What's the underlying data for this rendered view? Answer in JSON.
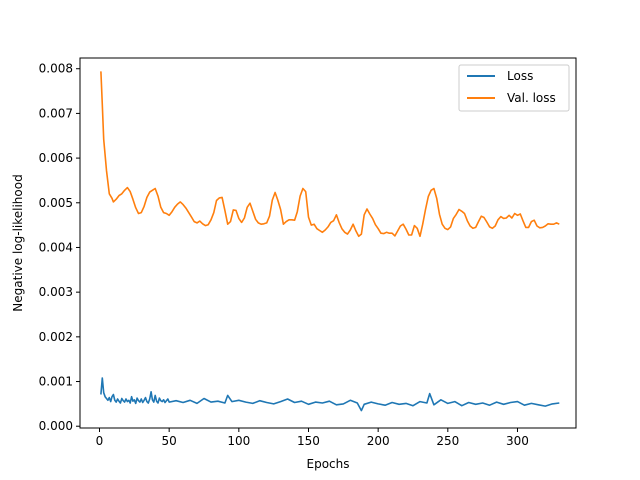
{
  "chart_data": {
    "type": "line",
    "xlabel": "Epochs",
    "ylabel": "Negative log-likelihood",
    "xlim": [
      -14,
      342
    ],
    "ylim": [
      -4e-05,
      0.00824
    ],
    "xticks": [
      0,
      50,
      100,
      150,
      200,
      250,
      300
    ],
    "yticks": [
      0.0,
      0.001,
      0.002,
      0.003,
      0.004,
      0.005,
      0.006,
      0.007,
      0.008
    ],
    "ytick_labels": [
      "0.000",
      "0.001",
      "0.002",
      "0.003",
      "0.004",
      "0.005",
      "0.006",
      "0.007",
      "0.008"
    ],
    "legend": {
      "placement": "top-right"
    },
    "grid": false,
    "series": [
      {
        "name": "Loss",
        "color": "#1f77b4",
        "x": [
          1,
          2,
          3,
          4,
          5,
          6,
          7,
          8,
          9,
          10,
          11,
          12,
          13,
          14,
          15,
          16,
          17,
          18,
          19,
          20,
          21,
          22,
          23,
          24,
          25,
          26,
          27,
          28,
          29,
          30,
          31,
          32,
          33,
          34,
          35,
          36,
          37,
          38,
          39,
          40,
          41,
          42,
          43,
          44,
          45,
          46,
          47,
          48,
          49,
          50,
          55,
          60,
          65,
          70,
          75,
          80,
          85,
          90,
          92,
          95,
          100,
          105,
          110,
          115,
          120,
          125,
          130,
          135,
          140,
          145,
          150,
          155,
          160,
          165,
          170,
          175,
          180,
          185,
          188,
          190,
          195,
          200,
          205,
          210,
          215,
          220,
          225,
          230,
          235,
          237,
          240,
          245,
          250,
          255,
          260,
          265,
          270,
          275,
          280,
          285,
          290,
          295,
          300,
          305,
          310,
          315,
          320,
          325,
          330
        ],
        "values": [
          0.00071,
          0.00108,
          0.00075,
          0.00066,
          0.00062,
          0.00058,
          0.00064,
          0.00055,
          0.00066,
          0.00071,
          0.00058,
          0.00054,
          0.00061,
          0.00056,
          0.00052,
          0.00062,
          0.00057,
          0.00054,
          0.00061,
          0.00055,
          0.00058,
          0.00052,
          0.00066,
          0.00056,
          0.00059,
          0.00051,
          0.00063,
          0.00057,
          0.00054,
          0.00061,
          0.00053,
          0.00058,
          0.00064,
          0.00055,
          0.00052,
          0.00061,
          0.00077,
          0.00059,
          0.00054,
          0.00069,
          0.00056,
          0.00052,
          0.00063,
          0.00057,
          0.00055,
          0.00059,
          0.00053,
          0.00057,
          0.00061,
          0.00054,
          0.00057,
          0.00053,
          0.00058,
          0.00051,
          0.00062,
          0.00054,
          0.00056,
          0.00052,
          0.00069,
          0.00055,
          0.00058,
          0.00054,
          0.00051,
          0.00057,
          0.00053,
          0.0005,
          0.00055,
          0.00061,
          0.00053,
          0.00056,
          0.00049,
          0.00054,
          0.00052,
          0.00056,
          0.00048,
          0.0005,
          0.00058,
          0.00052,
          0.00035,
          0.00049,
          0.00054,
          0.0005,
          0.00047,
          0.00053,
          0.00049,
          0.00051,
          0.00046,
          0.00055,
          0.00052,
          0.00073,
          0.00048,
          0.00059,
          0.00051,
          0.00055,
          0.00046,
          0.00053,
          0.00049,
          0.00052,
          0.00047,
          0.00054,
          0.00049,
          0.00053,
          0.00055,
          0.00047,
          0.00051,
          0.00048,
          0.00045,
          0.0005,
          0.00052
        ]
      },
      {
        "name": "Val. loss",
        "color": "#ff7f0e",
        "x": [
          1,
          2,
          3,
          5,
          7,
          9,
          10,
          12,
          14,
          16,
          18,
          20,
          22,
          24,
          26,
          28,
          30,
          32,
          34,
          36,
          38,
          40,
          42,
          44,
          46,
          48,
          50,
          52,
          54,
          56,
          58,
          60,
          62,
          64,
          66,
          68,
          70,
          72,
          74,
          76,
          78,
          80,
          82,
          84,
          86,
          88,
          90,
          92,
          94,
          96,
          98,
          100,
          102,
          104,
          106,
          108,
          110,
          112,
          114,
          116,
          118,
          120,
          122,
          124,
          126,
          128,
          130,
          132,
          134,
          136,
          138,
          140,
          142,
          144,
          146,
          148,
          150,
          152,
          154,
          156,
          158,
          160,
          162,
          164,
          166,
          168,
          170,
          172,
          174,
          176,
          178,
          180,
          182,
          184,
          186,
          188,
          190,
          192,
          194,
          196,
          198,
          200,
          202,
          204,
          206,
          208,
          210,
          212,
          214,
          216,
          218,
          220,
          222,
          224,
          226,
          228,
          230,
          232,
          234,
          236,
          238,
          240,
          242,
          244,
          246,
          248,
          250,
          252,
          254,
          256,
          258,
          260,
          262,
          264,
          266,
          268,
          270,
          272,
          274,
          276,
          278,
          280,
          282,
          284,
          286,
          288,
          290,
          292,
          294,
          296,
          298,
          300,
          302,
          304,
          306,
          308,
          310,
          312,
          314,
          316,
          318,
          320,
          322,
          324,
          326,
          328,
          330
        ],
        "values": [
          0.00794,
          0.0072,
          0.00642,
          0.00572,
          0.0052,
          0.0051,
          0.00502,
          0.00508,
          0.00516,
          0.0052,
          0.00528,
          0.00534,
          0.00525,
          0.00508,
          0.00489,
          0.00476,
          0.00478,
          0.00492,
          0.00512,
          0.00524,
          0.00528,
          0.00532,
          0.00515,
          0.0049,
          0.00478,
          0.00476,
          0.00472,
          0.0048,
          0.0049,
          0.00497,
          0.00502,
          0.00496,
          0.00488,
          0.00478,
          0.00468,
          0.00458,
          0.00455,
          0.00459,
          0.00453,
          0.00449,
          0.00451,
          0.00462,
          0.00478,
          0.00505,
          0.00511,
          0.00512,
          0.00483,
          0.00452,
          0.00458,
          0.00484,
          0.00483,
          0.00465,
          0.00456,
          0.00466,
          0.0049,
          0.00499,
          0.00481,
          0.00463,
          0.00455,
          0.00452,
          0.00453,
          0.00455,
          0.0047,
          0.00506,
          0.00523,
          0.00506,
          0.00485,
          0.00452,
          0.00458,
          0.00462,
          0.00462,
          0.00461,
          0.0048,
          0.00515,
          0.00532,
          0.00525,
          0.00468,
          0.0045,
          0.00452,
          0.00442,
          0.00438,
          0.00434,
          0.00439,
          0.00446,
          0.00456,
          0.0046,
          0.00473,
          0.00456,
          0.00442,
          0.00434,
          0.0043,
          0.00439,
          0.00452,
          0.00437,
          0.00425,
          0.0043,
          0.00473,
          0.00486,
          0.00475,
          0.00465,
          0.00451,
          0.00442,
          0.00432,
          0.00431,
          0.00434,
          0.00432,
          0.00432,
          0.00426,
          0.00437,
          0.00448,
          0.00452,
          0.00441,
          0.00428,
          0.00428,
          0.00449,
          0.00443,
          0.00425,
          0.00452,
          0.00485,
          0.00514,
          0.00528,
          0.00532,
          0.0051,
          0.00474,
          0.00452,
          0.00443,
          0.0044,
          0.00446,
          0.00465,
          0.00474,
          0.00485,
          0.00481,
          0.00476,
          0.0046,
          0.00448,
          0.00443,
          0.00445,
          0.00458,
          0.0047,
          0.00467,
          0.00457,
          0.00446,
          0.00443,
          0.00448,
          0.00462,
          0.00469,
          0.00465,
          0.00466,
          0.00472,
          0.00466,
          0.00476,
          0.00472,
          0.00475,
          0.00459,
          0.00445,
          0.00445,
          0.00458,
          0.00461,
          0.00448,
          0.00444,
          0.00445,
          0.00448,
          0.00453,
          0.00452,
          0.00452,
          0.00455,
          0.00452
        ]
      }
    ]
  }
}
